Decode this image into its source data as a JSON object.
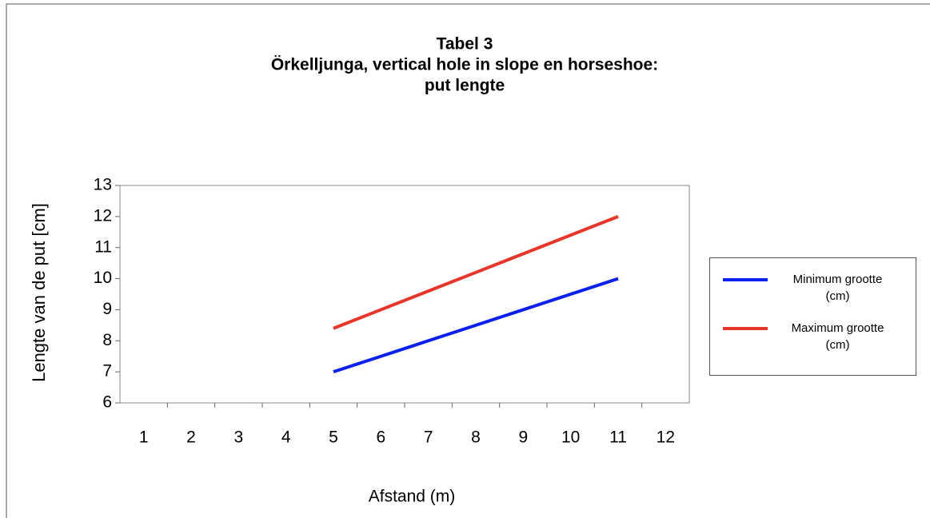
{
  "chart_data": {
    "type": "line",
    "title": [
      "Tabel 3",
      "Örkelljunga, vertical hole in slope en horseshoe:",
      "put lengte"
    ],
    "x_label": "Afstand (m)",
    "y_label": "Lengte van de put [cm]",
    "categories": [
      "1",
      "2",
      "3",
      "4",
      "5",
      "6",
      "7",
      "8",
      "9",
      "10",
      "11",
      "12"
    ],
    "series": [
      {
        "name": "Minimum grootte (cm)",
        "color": "#0a1ff0",
        "values": [
          null,
          null,
          null,
          null,
          7,
          7.5,
          8,
          8.5,
          9,
          9.5,
          10,
          null
        ]
      },
      {
        "name": "Maximum grootte (cm)",
        "color": "#e8352a",
        "values": [
          null,
          null,
          null,
          null,
          8.4,
          9.0,
          9.6,
          10.2,
          10.8,
          11.4,
          12,
          null
        ]
      }
    ],
    "ylim": [
      6,
      13
    ],
    "yticks": [
      6,
      7,
      8,
      9,
      10,
      11,
      12,
      13
    ],
    "legend": "right"
  }
}
